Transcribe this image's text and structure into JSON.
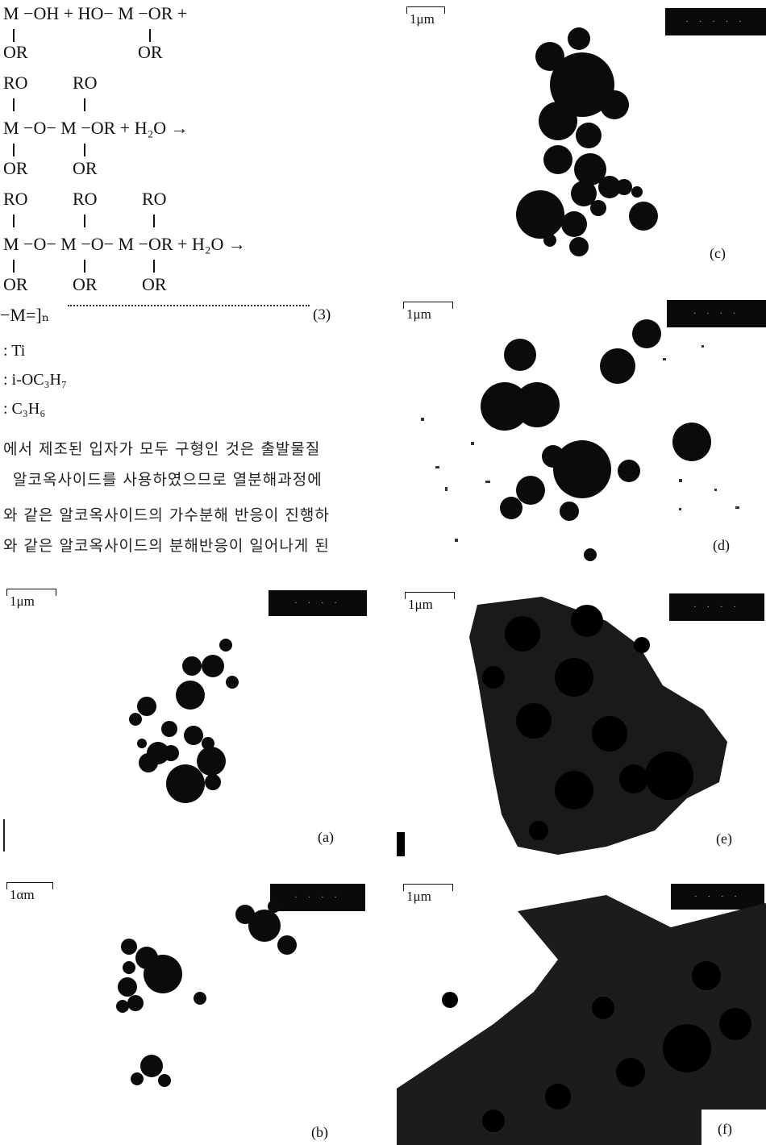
{
  "equations": {
    "eq1_line": "M −OH + HO− M −OR +",
    "eq1_sub_left": "OR",
    "eq1_sub_right": "OR",
    "eq2_top": [
      "RO",
      "RO"
    ],
    "eq2_line": "M −O− M −OR + H₂O →",
    "eq2_bottom": [
      "OR",
      "OR"
    ],
    "eq3_top": [
      "RO",
      "RO",
      "RO"
    ],
    "eq3_line": "M −O− M −O− M −OR + H₂O →",
    "eq3_bottom": [
      "OR",
      "OR",
      "OR"
    ],
    "polymer": "−M=]ₙ",
    "eq_number": "(3)"
  },
  "definitions": [
    ": Ti",
    ": i-OC₃H₇",
    ": C₃H₆"
  ],
  "paragraph": [
    "에서 제조된 입자가 모두 구형인 것은 출발물질",
    "알코옥사이드를 사용하였으므로 열분해과정에",
    "와 같은 알코옥사이드의 가수분해 반응이 진행하",
    "와 같은 알코옥사이드의 분해반응이 일어나게 된"
  ],
  "panels": {
    "a": {
      "scale": "1μm",
      "label": "(a)"
    },
    "b": {
      "scale": "1αm",
      "label": "(b)"
    },
    "c": {
      "scale": "1μm",
      "label": "(c)"
    },
    "d": {
      "scale": "1μm",
      "label": "(d)"
    },
    "e": {
      "scale": "1μm",
      "label": "(e)"
    },
    "f": {
      "scale": "1μm",
      "label": "(f)"
    }
  }
}
